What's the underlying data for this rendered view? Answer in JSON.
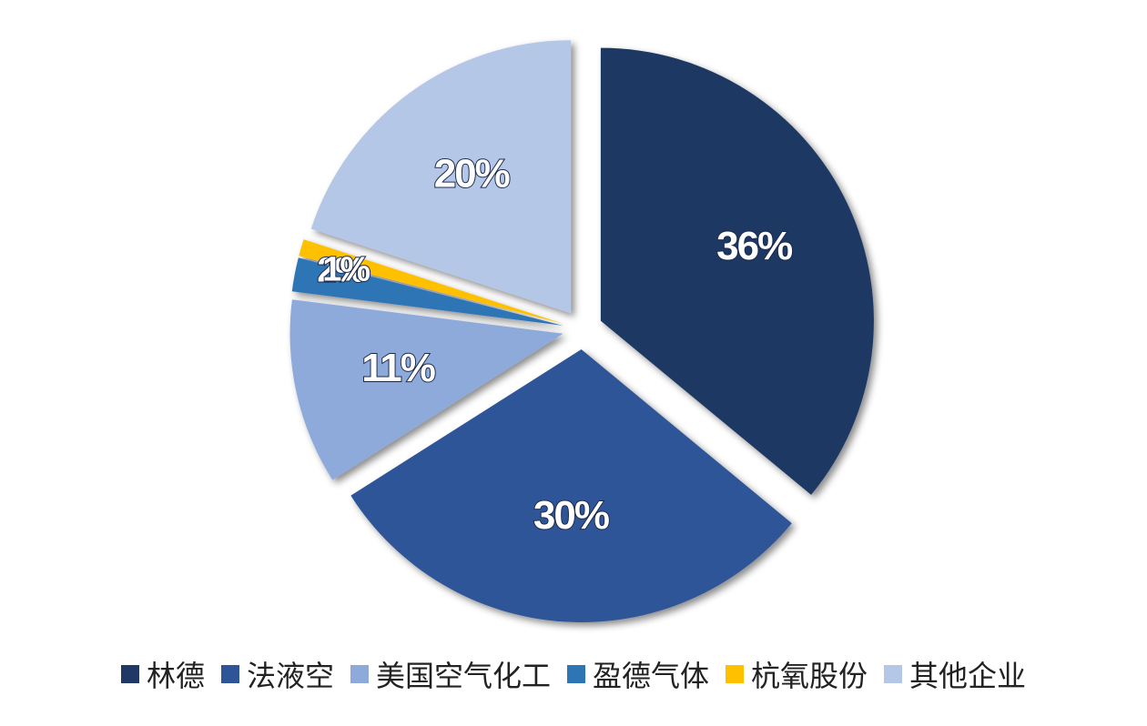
{
  "chart_data": {
    "type": "pie",
    "categories": [
      "林德",
      "法液空",
      "美国空气化工",
      "盈德气体",
      "杭氧股份",
      "其他企业"
    ],
    "values": [
      36,
      30,
      11,
      2,
      1,
      20
    ],
    "value_labels": [
      "36%",
      "30%",
      "11%",
      "2%",
      "1%",
      "20%"
    ],
    "colors": [
      "#1f3864",
      "#2e5597",
      "#8eaadb",
      "#2e75b6",
      "#ffc000",
      "#b4c7e7"
    ]
  }
}
